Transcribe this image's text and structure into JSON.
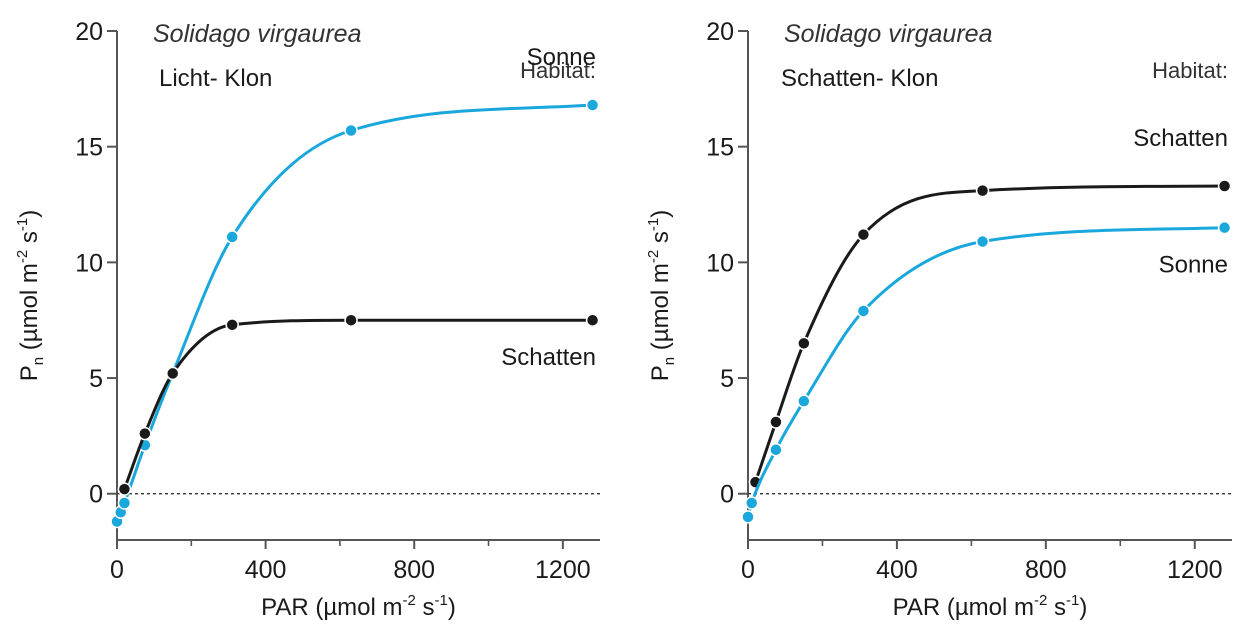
{
  "colors": {
    "sun": "#1aa7dc",
    "shade": "#1a1a1a",
    "axis": "#555555"
  },
  "chart_data": [
    {
      "type": "line",
      "title": "Solidago virgaurea",
      "subtitle": "Licht- Klon",
      "legend_title": "Habitat:",
      "xlabel": "PAR (µmol m-2 s-1)",
      "xlabel_main": "PAR (µmol m",
      "xlabel_sup1": "-2",
      "xlabel_mid": " s",
      "xlabel_sup2": "-1",
      "xlabel_end": ")",
      "ylabel": "Pn (µmol m-2 s-1)",
      "ylabel_main": "P",
      "ylabel_sub": "n",
      "ylabel_mid": " (µmol m",
      "ylabel_sup1": "-2",
      "ylabel_mid2": " s",
      "ylabel_sup2": "-1",
      "ylabel_end": ")",
      "xlim": [
        0,
        1300
      ],
      "ylim": [
        -2,
        20
      ],
      "xticks": [
        0,
        400,
        800,
        1200
      ],
      "xticks_minor": [
        200,
        600,
        1000
      ],
      "yticks": [
        0,
        5,
        10,
        15,
        20
      ],
      "grid": false,
      "zero_line": true,
      "series": [
        {
          "name": "Sonne",
          "color": "#1aa7dc",
          "x": [
            0,
            10,
            20,
            75,
            150,
            310,
            630,
            1280
          ],
          "y": [
            -1.2,
            -0.8,
            -0.4,
            2.1,
            5.2,
            11.1,
            15.7,
            16.8
          ],
          "label_anchor": "top"
        },
        {
          "name": "Schatten",
          "color": "#1a1a1a",
          "x": [
            20,
            75,
            150,
            310,
            630,
            1280
          ],
          "y": [
            0.2,
            2.6,
            5.2,
            7.3,
            7.5,
            7.5
          ],
          "label_anchor": "bottom"
        }
      ]
    },
    {
      "type": "line",
      "title": "Solidago virgaurea",
      "subtitle": "Schatten- Klon",
      "legend_title": "Habitat:",
      "xlabel": "PAR (µmol m-2 s-1)",
      "xlabel_main": "PAR (µmol m",
      "xlabel_sup1": "-2",
      "xlabel_mid": " s",
      "xlabel_sup2": "-1",
      "xlabel_end": ")",
      "ylabel": "Pn (µmol m-2 s-1)",
      "ylabel_main": "P",
      "ylabel_sub": "n",
      "ylabel_mid": " (µmol m",
      "ylabel_sup1": "-2",
      "ylabel_mid2": " s",
      "ylabel_sup2": "-1",
      "ylabel_end": ")",
      "xlim": [
        0,
        1300
      ],
      "ylim": [
        -2,
        20
      ],
      "xticks": [
        0,
        400,
        800,
        1200
      ],
      "xticks_minor": [
        200,
        600,
        1000
      ],
      "yticks": [
        0,
        5,
        10,
        15,
        20
      ],
      "grid": false,
      "zero_line": true,
      "series": [
        {
          "name": "Schatten",
          "color": "#1a1a1a",
          "x": [
            20,
            75,
            150,
            310,
            630,
            1280
          ],
          "y": [
            0.5,
            3.1,
            6.5,
            11.2,
            13.1,
            13.3
          ],
          "label_anchor": "top"
        },
        {
          "name": "Sonne",
          "color": "#1aa7dc",
          "x": [
            0,
            10,
            75,
            150,
            310,
            630,
            1280
          ],
          "y": [
            -1.0,
            -0.4,
            1.9,
            4.0,
            7.9,
            10.9,
            11.5
          ],
          "label_anchor": "bottom"
        }
      ]
    }
  ]
}
